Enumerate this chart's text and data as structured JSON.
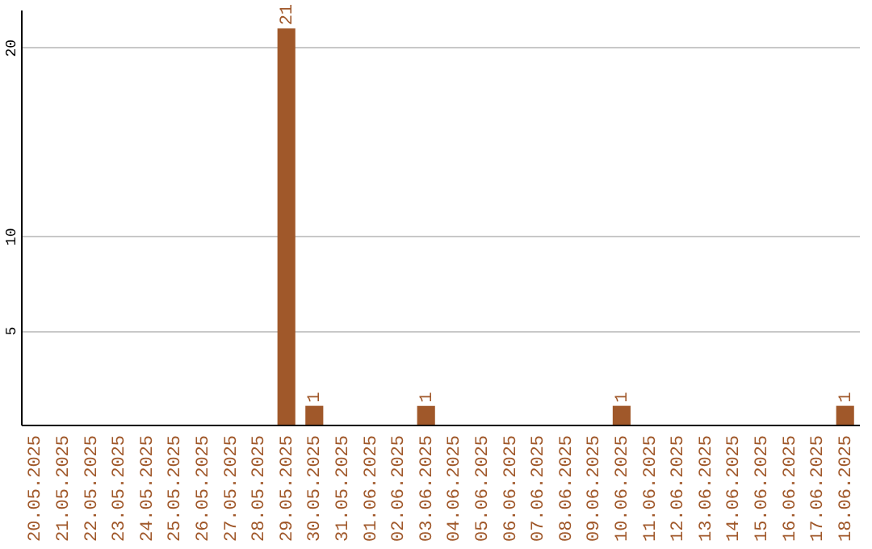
{
  "chart_data": {
    "type": "bar",
    "categories": [
      "20.05.2025",
      "21.05.2025",
      "22.05.2025",
      "23.05.2025",
      "24.05.2025",
      "25.05.2025",
      "26.05.2025",
      "27.05.2025",
      "28.05.2025",
      "29.05.2025",
      "30.05.2025",
      "31.05.2025",
      "01.06.2025",
      "02.06.2025",
      "03.06.2025",
      "04.06.2025",
      "05.06.2025",
      "06.06.2025",
      "07.06.2025",
      "08.06.2025",
      "09.06.2025",
      "10.06.2025",
      "11.06.2025",
      "12.06.2025",
      "13.06.2025",
      "14.06.2025",
      "15.06.2025",
      "16.06.2025",
      "17.06.2025",
      "18.06.2025"
    ],
    "values": [
      0,
      0,
      0,
      0,
      0,
      0,
      0,
      0,
      0,
      21,
      1,
      0,
      0,
      0,
      1,
      0,
      0,
      0,
      0,
      0,
      0,
      1,
      0,
      0,
      0,
      0,
      0,
      0,
      0,
      1
    ],
    "value_labels": [
      null,
      null,
      null,
      null,
      null,
      null,
      null,
      null,
      null,
      "21",
      "1",
      null,
      null,
      null,
      "1",
      null,
      null,
      null,
      null,
      null,
      null,
      "1",
      null,
      null,
      null,
      null,
      null,
      null,
      null,
      "1"
    ],
    "color": "#a0582a",
    "ylim": [
      0,
      22
    ],
    "yticks": [
      5,
      10,
      20
    ],
    "grid": "y"
  }
}
